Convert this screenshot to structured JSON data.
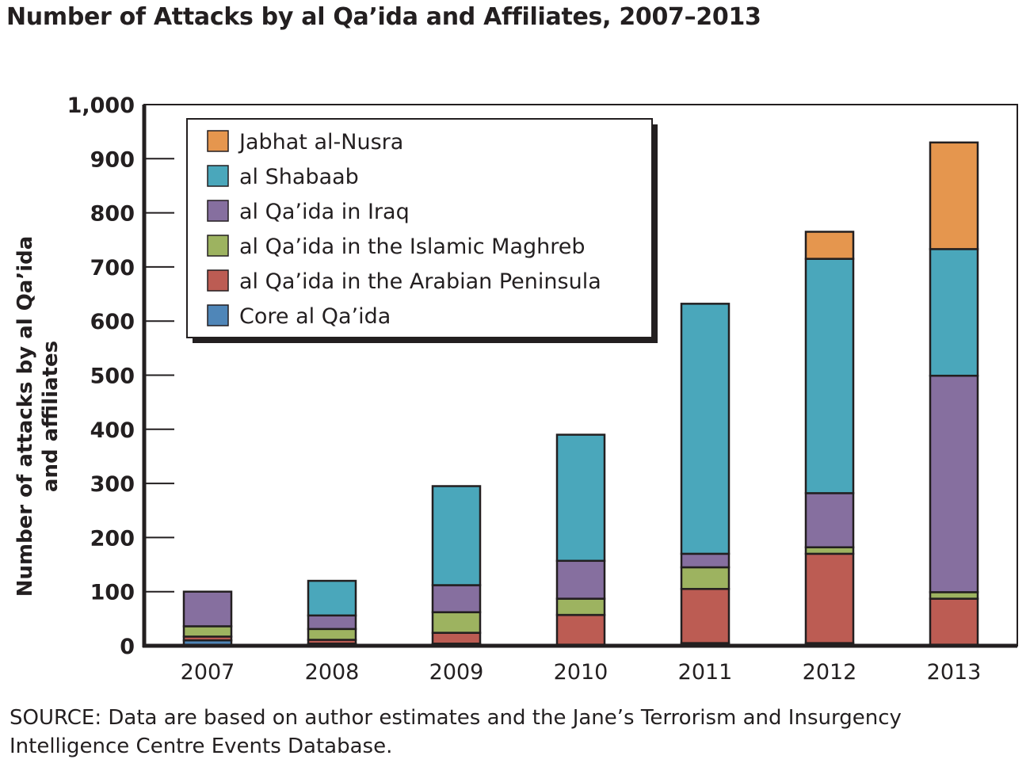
{
  "chart_data": {
    "type": "bar",
    "stacked": true,
    "title": "Number of Attacks by al Qa’ida and Affiliates, 2007–2013",
    "xlabel": "",
    "ylabel_lines": [
      "Number of attacks by al Qa’ida",
      "and affiliates"
    ],
    "ylim": [
      0,
      1000
    ],
    "yticks": [
      0,
      100,
      200,
      300,
      400,
      500,
      600,
      700,
      800,
      900,
      1000
    ],
    "ytick_labels": [
      "0",
      "100",
      "200",
      "300",
      "400",
      "500",
      "600",
      "700",
      "800",
      "900",
      "1,000"
    ],
    "grid": false,
    "legend_position": "top-left",
    "categories": [
      "2007",
      "2008",
      "2009",
      "2010",
      "2011",
      "2012",
      "2013"
    ],
    "series": [
      {
        "name": "Core al Qa’ida",
        "color": "#4f86b8",
        "values": [
          10,
          4,
          4,
          2,
          5,
          5,
          2
        ]
      },
      {
        "name": "al Qa’ida in the Arabian Peninsula",
        "color": "#bc5c53",
        "values": [
          7,
          7,
          20,
          55,
          100,
          165,
          85
        ]
      },
      {
        "name": "al Qa’ida in the Islamic Maghreb",
        "color": "#9db360",
        "values": [
          19,
          20,
          38,
          30,
          40,
          12,
          12
        ]
      },
      {
        "name": "al Qa’ida in Iraq",
        "color": "#866f9f",
        "values": [
          64,
          25,
          50,
          70,
          25,
          100,
          400
        ]
      },
      {
        "name": "al Shabaab",
        "color": "#4aa7bb",
        "values": [
          0,
          64,
          183,
          233,
          462,
          433,
          234
        ]
      },
      {
        "name": "Jabhat al-Nusra",
        "color": "#e5964e",
        "values": [
          0,
          0,
          0,
          0,
          0,
          50,
          197
        ]
      }
    ],
    "legend_order": [
      "Jabhat al-Nusra",
      "al Shabaab",
      "al Qa’ida in Iraq",
      "al Qa’ida in the Islamic Maghreb",
      "al Qa’ida in the Arabian Peninsula",
      "Core al Qa’ida"
    ],
    "source": "SOURCE: Data are based on author estimates and the Jane’s Terrorism and Insurgency Intelligence Centre Events Database."
  }
}
